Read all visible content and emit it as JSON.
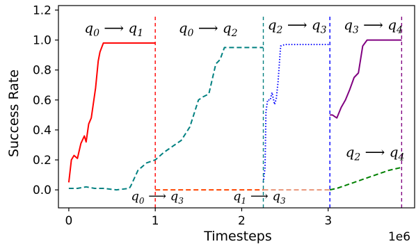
{
  "chart_data": {
    "type": "line",
    "xlabel": "Timesteps",
    "ylabel": "Success Rate",
    "x_offset_text": "1e6",
    "xlim": [
      -0.12,
      4.0
    ],
    "ylim": [
      -0.12,
      1.23
    ],
    "x_ticks": [
      0,
      1,
      2,
      3
    ],
    "x_tick_labels": [
      "0",
      "1",
      "2",
      "3"
    ],
    "y_ticks": [
      0.0,
      0.2,
      0.4,
      0.6,
      0.8,
      1.0,
      1.2
    ],
    "y_tick_labels": [
      "0.0",
      "0.2",
      "0.4",
      "0.6",
      "0.8",
      "1.0",
      "1.2"
    ],
    "grid": false,
    "boundaries": [
      {
        "x": 1.0,
        "color": "#ff0000"
      },
      {
        "x": 2.25,
        "color": "#008080"
      },
      {
        "x": 3.02,
        "color": "#0000ff"
      },
      {
        "x": 3.85,
        "color": "#800080"
      }
    ],
    "series": [
      {
        "name": "q0→q1",
        "color": "#ff0000",
        "style": "solid",
        "x": [
          0.0,
          0.03,
          0.06,
          0.1,
          0.14,
          0.18,
          0.2,
          0.23,
          0.26,
          0.28,
          0.31,
          0.34,
          0.36,
          0.4,
          0.5,
          0.7,
          1.0
        ],
        "y": [
          0.05,
          0.2,
          0.23,
          0.21,
          0.31,
          0.36,
          0.32,
          0.44,
          0.48,
          0.56,
          0.68,
          0.86,
          0.92,
          0.98,
          0.98,
          0.98,
          0.98
        ]
      },
      {
        "name": "q0→q2",
        "color": "#008080",
        "style": "dashed",
        "x": [
          0.0,
          0.1,
          0.2,
          0.3,
          0.4,
          0.55,
          0.7,
          0.72,
          0.8,
          0.9,
          1.0,
          1.1,
          1.2,
          1.3,
          1.4,
          1.5,
          1.55,
          1.62,
          1.7,
          1.75,
          1.8,
          2.0,
          2.25
        ],
        "y": [
          0.01,
          0.01,
          0.02,
          0.01,
          0.01,
          0.0,
          0.01,
          0.03,
          0.13,
          0.18,
          0.2,
          0.25,
          0.29,
          0.33,
          0.42,
          0.6,
          0.62,
          0.64,
          0.84,
          0.87,
          0.95,
          0.95,
          0.95
        ]
      },
      {
        "name": "q0→q3",
        "color": "#ff4500",
        "style": "dashed",
        "x": [
          1.0,
          2.25
        ],
        "y": [
          0.0,
          0.0
        ]
      },
      {
        "name": "q1→q3",
        "color": "#e9967a",
        "style": "dashed",
        "x": [
          2.25,
          3.02
        ],
        "y": [
          0.0,
          0.0
        ]
      },
      {
        "name": "q2→q3",
        "color": "#0000ff",
        "style": "dotted",
        "x": [
          2.25,
          2.27,
          2.28,
          2.3,
          2.33,
          2.35,
          2.38,
          2.4,
          2.42,
          2.45,
          2.5,
          2.6,
          3.02
        ],
        "y": [
          0.05,
          0.15,
          0.52,
          0.6,
          0.6,
          0.65,
          0.57,
          0.61,
          0.72,
          0.96,
          0.97,
          0.97,
          0.97
        ]
      },
      {
        "name": "q3→q4",
        "color": "#800080",
        "style": "solid",
        "x": [
          3.02,
          3.05,
          3.1,
          3.15,
          3.2,
          3.25,
          3.3,
          3.35,
          3.4,
          3.45,
          3.5,
          3.6,
          3.7,
          3.85
        ],
        "y": [
          0.5,
          0.5,
          0.48,
          0.55,
          0.6,
          0.67,
          0.75,
          0.78,
          0.96,
          1.0,
          1.0,
          1.0,
          1.0,
          1.0
        ]
      },
      {
        "name": "q2→q4",
        "color": "#008000",
        "style": "dashed",
        "x": [
          3.02,
          3.1,
          3.3,
          3.5,
          3.7,
          3.85
        ],
        "y": [
          0.0,
          0.01,
          0.05,
          0.09,
          0.13,
          0.15
        ]
      }
    ],
    "annotations": [
      {
        "from": "q",
        "from_sub": "0",
        "to": "q",
        "to_sub": "1",
        "x": 0.18,
        "y": 1.05
      },
      {
        "from": "q",
        "from_sub": "0",
        "to": "q",
        "to_sub": "2",
        "x": 1.27,
        "y": 1.05
      },
      {
        "from": "q",
        "from_sub": "2",
        "to": "q",
        "to_sub": "3",
        "x": 2.3,
        "y": 1.07
      },
      {
        "from": "q",
        "from_sub": "3",
        "to": "q",
        "to_sub": "4",
        "x": 3.18,
        "y": 1.07
      },
      {
        "from": "q",
        "from_sub": "2",
        "to": "q",
        "to_sub": "4",
        "x": 3.2,
        "y": 0.22
      },
      {
        "from": "q",
        "from_sub": "0",
        "to": "q",
        "to_sub": "3",
        "x": 0.72,
        "y": -0.07,
        "small": true
      },
      {
        "from": "q",
        "from_sub": "1",
        "to": "q",
        "to_sub": "3",
        "x": 1.9,
        "y": -0.07,
        "small": true
      }
    ]
  }
}
